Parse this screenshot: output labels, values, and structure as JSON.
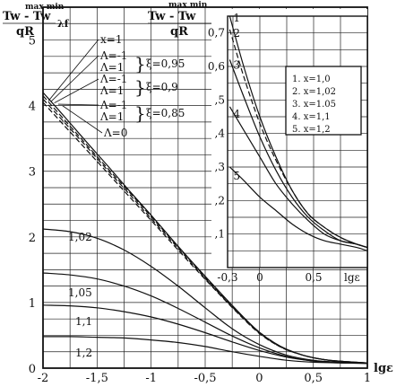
{
  "chart_data": [
    {
      "type": "line",
      "xlabel": "lgε",
      "ylabel": "(Tw^max − Tw^min)/(qR) λf",
      "ylabel_parts": {
        "num": "Tw - Tw",
        "sup": "max  min",
        "den": "qR",
        "suffix": "λf"
      },
      "xlim": [
        -2,
        1
      ],
      "ylim": [
        0,
        5.5
      ],
      "x_ticks": [
        -2,
        -1.5,
        -1,
        -0.5,
        0,
        0.5,
        1
      ],
      "x_tick_labels": [
        "-2",
        "-1,5",
        "-1",
        "-0,5",
        "0",
        "0,5",
        "1"
      ],
      "y_ticks": [
        0,
        1,
        2,
        3,
        4,
        5
      ],
      "y_tick_labels": [
        "0",
        "1",
        "2",
        "3",
        "4",
        "5"
      ],
      "grid": true,
      "series": [
        {
          "name": "Λ=0",
          "style": "solid",
          "x": [
            -2,
            -1.8,
            -1.6,
            -1.4,
            -1.2,
            -1.0,
            -0.8,
            -0.6,
            -0.4,
            -0.2,
            0,
            0.2,
            0.4,
            0.6,
            0.8,
            1.0
          ],
          "y": [
            4.2,
            3.83,
            3.45,
            3.08,
            2.7,
            2.33,
            1.95,
            1.58,
            1.22,
            0.87,
            0.55,
            0.33,
            0.2,
            0.13,
            0.1,
            0.08
          ]
        },
        {
          "name": "ξ=0,85",
          "style": "dash",
          "x": [
            -2,
            -1.8,
            -1.6,
            -1.4,
            -1.2,
            -1.0,
            -0.8,
            -0.6,
            -0.4,
            -0.2,
            0,
            0.2,
            0.4,
            0.6,
            0.8,
            1.0
          ],
          "y": [
            4.05,
            3.69,
            3.33,
            2.97,
            2.61,
            2.25,
            1.89,
            1.53,
            1.18,
            0.84,
            0.53,
            0.32,
            0.2,
            0.13,
            0.1,
            0.08
          ]
        },
        {
          "name": "ξ=0,9",
          "style": "dash",
          "x": [
            -2,
            -1.8,
            -1.6,
            -1.4,
            -1.2,
            -1.0,
            -0.8,
            -0.6,
            -0.4,
            -0.2,
            0,
            0.2,
            0.4,
            0.6,
            0.8,
            1.0
          ],
          "y": [
            4.1,
            3.74,
            3.38,
            3.01,
            2.65,
            2.28,
            1.92,
            1.55,
            1.19,
            0.85,
            0.54,
            0.32,
            0.2,
            0.13,
            0.1,
            0.08
          ]
        },
        {
          "name": "ξ=0,95",
          "style": "dash",
          "x": [
            -2,
            -1.8,
            -1.6,
            -1.4,
            -1.2,
            -1.0,
            -0.8,
            -0.6,
            -0.4,
            -0.2,
            0,
            0.2,
            0.4,
            0.6,
            0.8,
            1.0
          ],
          "y": [
            4.15,
            3.78,
            3.41,
            3.04,
            2.68,
            2.31,
            1.94,
            1.57,
            1.2,
            0.86,
            0.55,
            0.33,
            0.2,
            0.13,
            0.1,
            0.08
          ]
        },
        {
          "name": "x=1,02",
          "style": "solid",
          "x": [
            -2,
            -1.75,
            -1.5,
            -1.25,
            -1.0,
            -0.75,
            -0.5,
            -0.25,
            0,
            0.25,
            0.5,
            0.75,
            1.0
          ],
          "y": [
            2.12,
            2.08,
            1.98,
            1.8,
            1.55,
            1.25,
            0.92,
            0.6,
            0.36,
            0.2,
            0.12,
            0.09,
            0.08
          ]
        },
        {
          "name": "x=1,05",
          "style": "solid",
          "x": [
            -2,
            -1.75,
            -1.5,
            -1.25,
            -1.0,
            -0.75,
            -0.5,
            -0.25,
            0,
            0.25,
            0.5,
            0.75,
            1.0
          ],
          "y": [
            1.45,
            1.42,
            1.36,
            1.25,
            1.1,
            0.91,
            0.7,
            0.49,
            0.31,
            0.18,
            0.11,
            0.09,
            0.08
          ]
        },
        {
          "name": "x=1,1",
          "style": "solid",
          "x": [
            -2,
            -1.75,
            -1.5,
            -1.25,
            -1.0,
            -0.75,
            -0.5,
            -0.25,
            0,
            0.25,
            0.5,
            0.75,
            1.0
          ],
          "y": [
            0.96,
            0.95,
            0.92,
            0.86,
            0.78,
            0.67,
            0.54,
            0.4,
            0.27,
            0.17,
            0.11,
            0.08,
            0.08
          ]
        },
        {
          "name": "x=1,2",
          "style": "solid",
          "x": [
            -2,
            -1.75,
            -1.5,
            -1.25,
            -1.0,
            -0.75,
            -0.5,
            -0.25,
            0,
            0.25,
            0.5,
            0.75,
            1.0
          ],
          "y": [
            0.48,
            0.48,
            0.47,
            0.46,
            0.43,
            0.39,
            0.33,
            0.25,
            0.18,
            0.12,
            0.09,
            0.08,
            0.07
          ]
        }
      ],
      "annotations": {
        "group_labels": [
          "x=1",
          "Λ=-1",
          "Λ=1",
          "Λ=-1",
          "Λ=1",
          "Λ=-1",
          "Λ=1",
          "Λ=0"
        ],
        "xi_labels": [
          "ξ=0,95",
          "ξ=0,9",
          "ξ=0,85"
        ],
        "curve_labels": [
          "1,02",
          "1,05",
          "1,1",
          "1,2"
        ]
      }
    },
    {
      "type": "line",
      "xlabel": "lgε",
      "ylabel_parts": {
        "num": "Tw - Tw",
        "sup": "max  min",
        "den": "qR"
      },
      "xlim": [
        -0.3,
        1
      ],
      "ylim": [
        0,
        0.75
      ],
      "x_ticks": [
        -0.3,
        0,
        0.5
      ],
      "x_tick_labels": [
        "-0,3",
        "0",
        "0,5"
      ],
      "x_end_label": "lgε",
      "y_ticks": [
        0.1,
        0.2,
        0.3,
        0.4,
        0.5,
        0.6,
        0.7
      ],
      "y_tick_labels": [
        ",1",
        ",2",
        ",3",
        ",4",
        ",5",
        "0,6",
        "0,7"
      ],
      "grid": true,
      "legend": {
        "placement": "top-right",
        "entries": [
          "1. x=1,0",
          "2. x=1,02",
          "3. x=1.05",
          "4. x=1,1",
          "5. x=1,2"
        ]
      },
      "curve_numbers": [
        "1",
        "2",
        "3",
        "4",
        "5"
      ],
      "series": [
        {
          "name": "1. x=1,0",
          "style": "solid",
          "x": [
            -0.28,
            -0.15,
            0,
            0.15,
            0.3,
            0.45,
            0.6,
            0.75,
            0.9,
            1.0
          ],
          "y": [
            0.75,
            0.6,
            0.45,
            0.33,
            0.23,
            0.16,
            0.12,
            0.09,
            0.07,
            0.06
          ]
        },
        {
          "name": "2. x=1,02",
          "style": "dash",
          "x": [
            -0.28,
            -0.15,
            0,
            0.15,
            0.3,
            0.45,
            0.6,
            0.75,
            0.9,
            1.0
          ],
          "y": [
            0.71,
            0.57,
            0.43,
            0.32,
            0.23,
            0.16,
            0.12,
            0.09,
            0.07,
            0.06
          ]
        },
        {
          "name": "3. x=1.05",
          "style": "solid",
          "x": [
            -0.28,
            -0.15,
            0,
            0.15,
            0.3,
            0.45,
            0.6,
            0.75,
            0.9,
            1.0
          ],
          "y": [
            0.62,
            0.51,
            0.39,
            0.29,
            0.21,
            0.15,
            0.11,
            0.08,
            0.07,
            0.06
          ]
        },
        {
          "name": "4. x=1,1",
          "style": "solid",
          "x": [
            -0.28,
            -0.15,
            0,
            0.15,
            0.3,
            0.45,
            0.6,
            0.75,
            0.9,
            1.0
          ],
          "y": [
            0.48,
            0.41,
            0.33,
            0.25,
            0.19,
            0.14,
            0.1,
            0.08,
            0.07,
            0.06
          ]
        },
        {
          "name": "5. x=1,2",
          "style": "solid",
          "x": [
            -0.28,
            -0.15,
            0,
            0.15,
            0.3,
            0.45,
            0.6,
            0.75,
            0.9,
            1.0
          ],
          "y": [
            0.3,
            0.26,
            0.21,
            0.17,
            0.13,
            0.1,
            0.08,
            0.07,
            0.06,
            0.05
          ]
        }
      ]
    }
  ]
}
